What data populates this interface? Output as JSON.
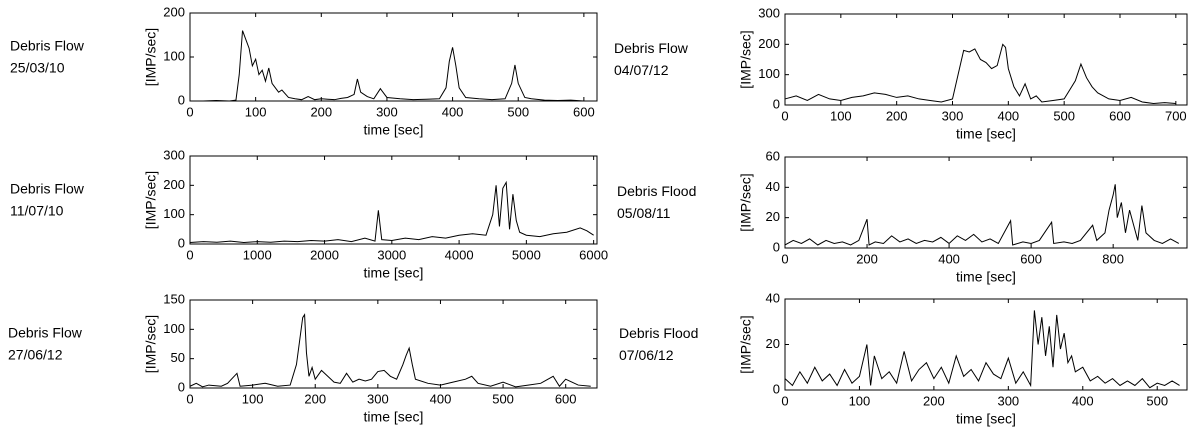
{
  "chart_data": [
    {
      "type": "line",
      "title": "Debris Flow",
      "subtitle": "25/03/10",
      "xlabel": "time [sec]",
      "ylabel": "[IMP/sec]",
      "color": "#000000",
      "x": [
        0,
        20,
        40,
        60,
        70,
        75,
        80,
        85,
        90,
        95,
        100,
        105,
        110,
        115,
        120,
        125,
        130,
        135,
        140,
        150,
        160,
        170,
        180,
        190,
        200,
        210,
        220,
        230,
        240,
        250,
        255,
        260,
        270,
        280,
        290,
        300,
        320,
        340,
        360,
        380,
        390,
        395,
        400,
        405,
        410,
        420,
        440,
        460,
        480,
        490,
        495,
        500,
        510,
        520,
        540,
        560,
        580,
        600
      ],
      "values": [
        0,
        0,
        1,
        0,
        2,
        60,
        160,
        140,
        120,
        80,
        95,
        60,
        70,
        45,
        75,
        40,
        30,
        20,
        25,
        8,
        5,
        3,
        10,
        3,
        5,
        4,
        3,
        6,
        8,
        15,
        50,
        20,
        10,
        5,
        28,
        8,
        5,
        3,
        4,
        5,
        30,
        90,
        122,
        80,
        30,
        8,
        5,
        3,
        5,
        40,
        82,
        40,
        8,
        5,
        2,
        1,
        2,
        0
      ],
      "xlim": [
        0,
        620
      ],
      "ylim": [
        0,
        200
      ],
      "xticks": [
        0,
        100,
        200,
        300,
        400,
        500,
        600
      ],
      "yticks": [
        0,
        100,
        200
      ]
    },
    {
      "type": "line",
      "title": "Debris Flow",
      "subtitle": "04/07/12",
      "xlabel": "time [sec]",
      "ylabel": "[IMP/sec]",
      "color": "#000000",
      "x": [
        0,
        20,
        40,
        60,
        80,
        100,
        120,
        140,
        160,
        180,
        200,
        220,
        240,
        260,
        280,
        300,
        310,
        320,
        330,
        340,
        350,
        360,
        370,
        380,
        390,
        395,
        400,
        410,
        420,
        430,
        440,
        450,
        460,
        480,
        500,
        510,
        520,
        530,
        540,
        550,
        560,
        580,
        600,
        620,
        640,
        660,
        680,
        700
      ],
      "values": [
        20,
        30,
        15,
        35,
        20,
        15,
        25,
        30,
        40,
        35,
        25,
        30,
        20,
        15,
        10,
        20,
        100,
        180,
        175,
        185,
        150,
        140,
        120,
        130,
        200,
        190,
        120,
        60,
        30,
        70,
        20,
        30,
        10,
        15,
        20,
        50,
        80,
        135,
        90,
        60,
        40,
        20,
        15,
        25,
        10,
        5,
        8,
        5
      ],
      "xlim": [
        0,
        720
      ],
      "ylim": [
        0,
        300
      ],
      "xticks": [
        0,
        100,
        200,
        300,
        400,
        500,
        600,
        700
      ],
      "yticks": [
        0,
        100,
        200,
        300
      ]
    },
    {
      "type": "line",
      "title": "Debris Flow",
      "subtitle": "11/07/10",
      "xlabel": "time [sec]",
      "ylabel": "[IMP/sec]",
      "color": "#000000",
      "x": [
        0,
        200,
        400,
        600,
        800,
        1000,
        1200,
        1400,
        1600,
        1800,
        2000,
        2200,
        2400,
        2600,
        2750,
        2800,
        2850,
        3000,
        3200,
        3400,
        3600,
        3800,
        4000,
        4200,
        4400,
        4500,
        4550,
        4600,
        4650,
        4700,
        4750,
        4800,
        4850,
        4900,
        5000,
        5200,
        5400,
        5600,
        5800,
        5900,
        6000
      ],
      "values": [
        5,
        8,
        6,
        10,
        5,
        8,
        6,
        10,
        8,
        12,
        10,
        15,
        8,
        20,
        10,
        115,
        15,
        12,
        20,
        15,
        25,
        20,
        30,
        35,
        30,
        100,
        200,
        60,
        190,
        210,
        50,
        170,
        80,
        40,
        30,
        25,
        35,
        40,
        55,
        45,
        30
      ],
      "xlim": [
        0,
        6050
      ],
      "ylim": [
        0,
        300
      ],
      "xticks": [
        0,
        1000,
        2000,
        3000,
        4000,
        5000,
        6000
      ],
      "yticks": [
        0,
        100,
        200,
        300
      ]
    },
    {
      "type": "line",
      "title": "Debris Flood",
      "subtitle": "05/08/11",
      "xlabel": "time [sec]",
      "ylabel": "[IMP/sec]",
      "color": "#000000",
      "x": [
        0,
        20,
        40,
        60,
        80,
        100,
        120,
        140,
        160,
        180,
        200,
        205,
        220,
        240,
        260,
        280,
        300,
        320,
        340,
        360,
        380,
        400,
        420,
        440,
        460,
        480,
        500,
        520,
        550,
        555,
        580,
        600,
        620,
        650,
        655,
        680,
        700,
        720,
        750,
        760,
        780,
        790,
        800,
        805,
        810,
        820,
        830,
        840,
        850,
        860,
        870,
        880,
        900,
        920,
        940,
        960
      ],
      "values": [
        2,
        5,
        3,
        6,
        2,
        5,
        3,
        4,
        2,
        5,
        19,
        2,
        4,
        3,
        8,
        4,
        6,
        3,
        5,
        4,
        7,
        3,
        8,
        5,
        9,
        4,
        6,
        3,
        18,
        2,
        4,
        3,
        5,
        17,
        3,
        4,
        3,
        5,
        15,
        5,
        10,
        25,
        35,
        42,
        20,
        30,
        10,
        25,
        15,
        5,
        28,
        10,
        5,
        3,
        6,
        3
      ],
      "xlim": [
        0,
        980
      ],
      "ylim": [
        0,
        60
      ],
      "xticks": [
        0,
        200,
        400,
        600,
        800
      ],
      "yticks": [
        0,
        20,
        40,
        60
      ]
    },
    {
      "type": "line",
      "title": "Debris Flow",
      "subtitle": "27/06/12",
      "xlabel": "time [sec]",
      "ylabel": "[IMP/sec]",
      "color": "#000000",
      "x": [
        0,
        10,
        20,
        30,
        50,
        60,
        75,
        80,
        100,
        120,
        140,
        160,
        170,
        175,
        180,
        183,
        186,
        190,
        195,
        200,
        210,
        220,
        230,
        240,
        250,
        260,
        270,
        280,
        290,
        300,
        310,
        320,
        330,
        340,
        345,
        350,
        355,
        360,
        380,
        400,
        420,
        440,
        450,
        460,
        480,
        500,
        520,
        540,
        560,
        580,
        590,
        600,
        620,
        640
      ],
      "values": [
        3,
        8,
        2,
        5,
        3,
        8,
        25,
        3,
        5,
        8,
        3,
        5,
        40,
        80,
        120,
        125,
        60,
        20,
        35,
        15,
        30,
        20,
        10,
        8,
        25,
        10,
        15,
        12,
        15,
        28,
        30,
        20,
        15,
        40,
        55,
        68,
        40,
        15,
        8,
        5,
        10,
        15,
        20,
        8,
        3,
        10,
        2,
        5,
        8,
        20,
        3,
        15,
        5,
        3
      ],
      "xlim": [
        0,
        650
      ],
      "ylim": [
        0,
        150
      ],
      "xticks": [
        0,
        100,
        200,
        300,
        400,
        500,
        600
      ],
      "yticks": [
        0,
        50,
        100,
        150
      ]
    },
    {
      "type": "line",
      "title": "Debris Flood",
      "subtitle": "07/06/12",
      "xlabel": "time [sec]",
      "ylabel": "[IMP/sec]",
      "color": "#000000",
      "x": [
        0,
        10,
        20,
        30,
        40,
        50,
        60,
        70,
        80,
        90,
        100,
        110,
        115,
        120,
        130,
        140,
        150,
        160,
        170,
        180,
        190,
        200,
        210,
        220,
        230,
        240,
        250,
        260,
        270,
        280,
        290,
        300,
        310,
        320,
        330,
        335,
        340,
        345,
        350,
        355,
        360,
        365,
        370,
        375,
        380,
        385,
        390,
        400,
        410,
        420,
        430,
        440,
        450,
        460,
        470,
        480,
        490,
        500,
        510,
        520,
        530
      ],
      "values": [
        5,
        2,
        8,
        3,
        10,
        4,
        7,
        2,
        9,
        3,
        6,
        20,
        2,
        15,
        5,
        8,
        3,
        17,
        4,
        9,
        12,
        5,
        10,
        3,
        15,
        6,
        9,
        4,
        12,
        7,
        5,
        14,
        3,
        8,
        2,
        35,
        20,
        32,
        15,
        28,
        10,
        33,
        18,
        25,
        12,
        15,
        8,
        10,
        4,
        6,
        3,
        5,
        2,
        4,
        2,
        5,
        1,
        3,
        2,
        4,
        2
      ],
      "xlim": [
        0,
        540
      ],
      "ylim": [
        0,
        40
      ],
      "xticks": [
        0,
        100,
        200,
        300,
        400,
        500
      ],
      "yticks": [
        0,
        20,
        40
      ]
    }
  ]
}
